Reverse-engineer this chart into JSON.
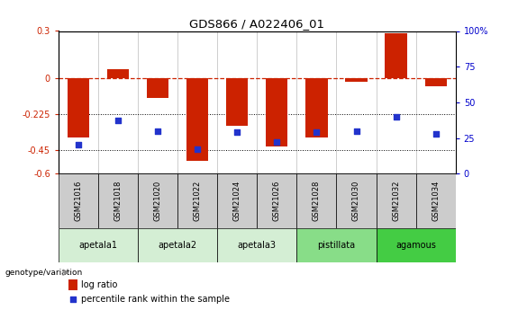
{
  "title": "GDS866 / A022406_01",
  "samples": [
    "GSM21016",
    "GSM21018",
    "GSM21020",
    "GSM21022",
    "GSM21024",
    "GSM21026",
    "GSM21028",
    "GSM21030",
    "GSM21032",
    "GSM21034"
  ],
  "log_ratios": [
    -0.37,
    0.06,
    -0.12,
    -0.52,
    -0.3,
    -0.43,
    -0.37,
    -0.02,
    0.285,
    -0.05
  ],
  "percentile_ranks": [
    20,
    37,
    30,
    17,
    29,
    22,
    29,
    30,
    40,
    28
  ],
  "groups": [
    {
      "label": "apetala1",
      "indices": [
        0,
        1
      ],
      "color": "#d4eed4"
    },
    {
      "label": "apetala2",
      "indices": [
        2,
        3
      ],
      "color": "#d4eed4"
    },
    {
      "label": "apetala3",
      "indices": [
        4,
        5
      ],
      "color": "#d4eed4"
    },
    {
      "label": "pistillata",
      "indices": [
        6,
        7
      ],
      "color": "#88dd88"
    },
    {
      "label": "agamous",
      "indices": [
        8,
        9
      ],
      "color": "#44cc44"
    }
  ],
  "ylim_left": [
    -0.6,
    0.3
  ],
  "ylim_right": [
    0,
    100
  ],
  "yticks_left": [
    -0.6,
    -0.45,
    -0.225,
    0.0,
    0.3
  ],
  "yticks_left_labels": [
    "-0.6",
    "-0.45",
    "-0.225",
    "0",
    "0.3"
  ],
  "yticks_right": [
    0,
    25,
    50,
    75,
    100
  ],
  "yticks_right_labels": [
    "0",
    "25",
    "50",
    "75",
    "100%"
  ],
  "hlines": [
    -0.225,
    -0.45
  ],
  "bar_color": "#cc2200",
  "dot_color": "#2233cc",
  "bar_width": 0.55,
  "sample_box_color": "#cccccc",
  "legend_bar_color": "#cc2200",
  "legend_dot_color": "#2233cc"
}
